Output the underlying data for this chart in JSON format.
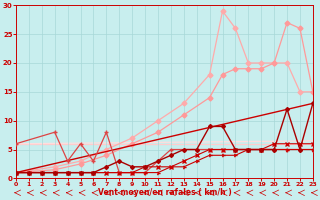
{
  "xlabel": "Vent moyen/en rafales ( km/h )",
  "xlim": [
    0,
    23
  ],
  "ylim": [
    0,
    30
  ],
  "xticks": [
    0,
    1,
    2,
    3,
    4,
    5,
    6,
    7,
    8,
    9,
    10,
    11,
    12,
    13,
    14,
    15,
    16,
    17,
    18,
    19,
    20,
    21,
    22,
    23
  ],
  "yticks": [
    0,
    5,
    10,
    15,
    20,
    25,
    30
  ],
  "bg_color": "#c8eeee",
  "grid_color": "#a8d8d8",
  "series": [
    {
      "x": [
        0,
        3,
        5,
        7,
        9,
        11,
        13,
        15,
        16,
        17,
        18,
        19,
        20,
        21,
        22,
        23
      ],
      "y": [
        1,
        2,
        3,
        5,
        7,
        10,
        13,
        18,
        29,
        26,
        20,
        20,
        20,
        20,
        15,
        15
      ],
      "color": "#ffaaaa",
      "lw": 0.9,
      "marker": "D",
      "ms": 2.5,
      "alpha": 1.0,
      "zorder": 2
    },
    {
      "x": [
        0,
        3,
        5,
        7,
        9,
        11,
        13,
        15,
        16,
        17,
        18,
        19,
        20,
        21,
        22,
        23
      ],
      "y": [
        1,
        1.5,
        2.5,
        4,
        6,
        8,
        11,
        14,
        18,
        19,
        19,
        19,
        20,
        27,
        26,
        15
      ],
      "color": "#ff9999",
      "lw": 0.9,
      "marker": "D",
      "ms": 2.5,
      "alpha": 1.0,
      "zorder": 2
    },
    {
      "x": [
        0,
        23
      ],
      "y": [
        6,
        6
      ],
      "color": "#ffcccc",
      "lw": 0.9,
      "marker": null,
      "ms": 0,
      "alpha": 1.0,
      "zorder": 1
    },
    {
      "x": [
        0,
        23
      ],
      "y": [
        6,
        6.5
      ],
      "color": "#ffdddd",
      "lw": 0.9,
      "marker": null,
      "ms": 0,
      "alpha": 1.0,
      "zorder": 1
    },
    {
      "x": [
        0,
        23
      ],
      "y": [
        1,
        13
      ],
      "color": "#cc0000",
      "lw": 1.0,
      "marker": null,
      "ms": 0,
      "alpha": 1.0,
      "zorder": 3
    },
    {
      "x": [
        0,
        1,
        2,
        3,
        4,
        5,
        6,
        7,
        8,
        9,
        10,
        11,
        12,
        13,
        14,
        15,
        16,
        17,
        18,
        19,
        20,
        21,
        22,
        23
      ],
      "y": [
        1,
        1,
        1,
        1,
        1,
        1,
        1,
        1,
        1,
        1,
        2,
        2,
        2,
        3,
        4,
        5,
        5,
        5,
        5,
        5,
        6,
        6,
        6,
        6
      ],
      "color": "#cc0000",
      "lw": 0.8,
      "marker": "x",
      "ms": 2.5,
      "alpha": 1.0,
      "zorder": 4
    },
    {
      "x": [
        0,
        1,
        2,
        3,
        4,
        5,
        6,
        7,
        8,
        9,
        10,
        11,
        12,
        13,
        14,
        15,
        16,
        17,
        18,
        19,
        20,
        21,
        22,
        23
      ],
      "y": [
        1,
        1,
        1,
        1,
        1,
        1,
        1,
        1,
        1,
        1,
        1,
        1,
        2,
        2,
        3,
        4,
        4,
        4,
        5,
        5,
        5,
        5,
        5,
        5
      ],
      "color": "#cc0000",
      "lw": 0.8,
      "marker": "4",
      "ms": 3,
      "alpha": 1.0,
      "zorder": 4
    },
    {
      "x": [
        0,
        1,
        2,
        3,
        4,
        5,
        6,
        7,
        8,
        9,
        10,
        11,
        12,
        13,
        14,
        15,
        16,
        17,
        18,
        19,
        20,
        21,
        22,
        23
      ],
      "y": [
        1,
        1,
        1,
        1,
        1,
        1,
        1,
        2,
        3,
        2,
        2,
        3,
        4,
        5,
        5,
        9,
        9,
        5,
        5,
        5,
        5,
        12,
        5,
        13
      ],
      "color": "#aa0000",
      "lw": 1.0,
      "marker": "D",
      "ms": 2,
      "alpha": 1.0,
      "zorder": 5
    },
    {
      "x": [
        0,
        3,
        4,
        5,
        6,
        7,
        8,
        9,
        10,
        11,
        12,
        13,
        14,
        15,
        16,
        17,
        18,
        19,
        20,
        21,
        22,
        23
      ],
      "y": [
        6,
        8,
        3,
        6,
        3,
        8,
        1,
        1,
        1,
        3,
        5,
        5,
        5,
        5,
        5,
        5,
        5,
        5,
        5,
        5,
        5,
        5
      ],
      "color": "#dd4444",
      "lw": 0.9,
      "marker": "+",
      "ms": 3,
      "alpha": 1.0,
      "zorder": 3
    }
  ]
}
